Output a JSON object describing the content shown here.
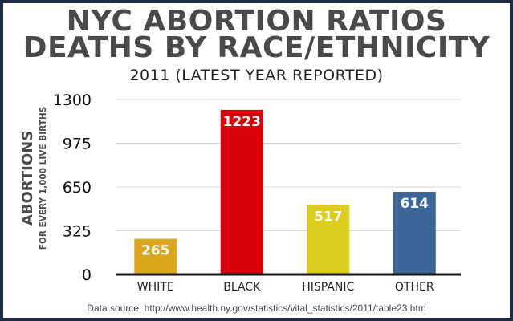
{
  "title_lines": [
    "NYC ABORTION RATIOS",
    "DEATHS BY RACE/ETHNICITY"
  ],
  "subtitle": "2011 (LATEST YEAR REPORTED)",
  "source": "Data source:  http://www.health.ny.gov/statistics/vital_statistics/2011/table23.htm",
  "colors": {
    "background": "#1f2a44",
    "title": "#4a4a4a",
    "bars": [
      "#dba81d",
      "#d9020b",
      "#dccd1d",
      "#3b6699"
    ]
  },
  "chart_data": {
    "type": "bar",
    "title": "NYC ABORTION RATIOS DEATHS BY RACE/ETHNICITY",
    "subtitle": "2011 (LATEST YEAR REPORTED)",
    "ylabel": "ABORTIONS",
    "ylabel_sub": "FOR EVERY 1,000 LIVE BIRTHS",
    "xlabel": "",
    "categories": [
      "WHITE",
      "BLACK",
      "HISPANIC",
      "OTHER"
    ],
    "values": [
      265,
      1223,
      517,
      614
    ],
    "value_labels": [
      "265",
      "1223",
      "517",
      "614"
    ],
    "yticks": [
      0,
      325,
      650,
      975,
      1300
    ],
    "ytick_labels": [
      "0",
      "325",
      "650",
      "975",
      "1300"
    ],
    "ylim": [
      0,
      1300
    ],
    "grid": true,
    "legend": "none"
  }
}
